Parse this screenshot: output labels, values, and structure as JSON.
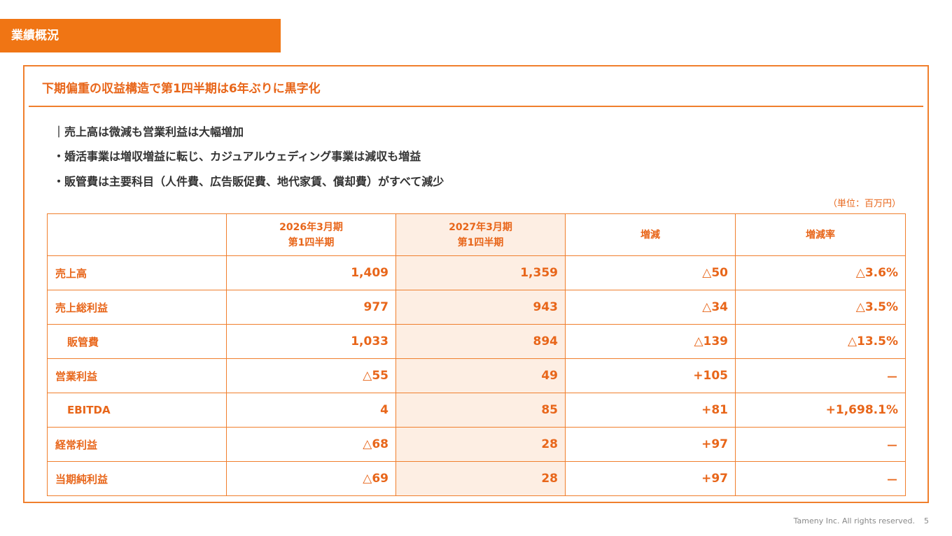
{
  "header": {
    "title": "業績概況"
  },
  "subtitle": "下期偏重の収益構造で第1四半期は6年ぶりに黒字化",
  "bullets": [
    "｜売上高は微減も営業利益は大幅増加",
    "・婚活事業は増収増益に転じ、カジュアルウェディング事業は減収も増益",
    "・販管費は主要科目（人件費、広告販促費、地代家賃、償却費）がすべて減少"
  ],
  "unit_note": "（単位：百万円）",
  "table": {
    "columns": [
      [
        "2026年3月期",
        "第1四半期"
      ],
      [
        "2027年3月期",
        "第1四半期"
      ],
      [
        "増減"
      ],
      [
        "増減率"
      ]
    ],
    "rows": [
      [
        "売上高",
        "1,409",
        "1,359",
        "△50",
        "△3.6%"
      ],
      [
        "売上総利益",
        "977",
        "943",
        "△34",
        "△3.5%"
      ],
      [
        "販管費",
        "1,033",
        "894",
        "△139",
        "△13.5%"
      ],
      [
        "営業利益",
        "△55",
        "49",
        "+105",
        "－"
      ],
      [
        "EBITDA",
        "4",
        "85",
        "+81",
        "+1,698.1%"
      ],
      [
        "経常利益",
        "△68",
        "28",
        "+97",
        "－"
      ],
      [
        "当期純利益",
        "△69",
        "28",
        "+97",
        "－"
      ]
    ]
  },
  "footer": {
    "copyright": "Tameny Inc. All rights reserved.",
    "page": "5"
  }
}
